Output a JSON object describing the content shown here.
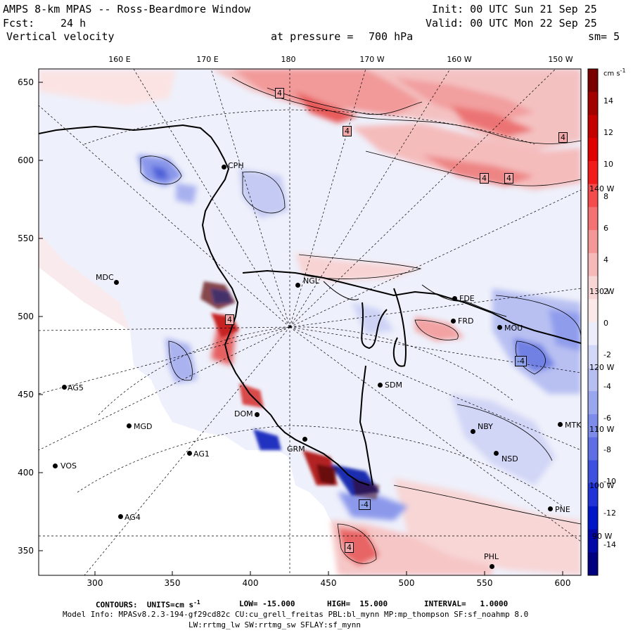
{
  "header": {
    "title": "AMPS 8-km MPAS -- Ross-Beardmore Window",
    "fcst_label": "Fcst:",
    "fcst_value": "24 h",
    "field": "Vertical velocity",
    "init": "Init: 00 UTC Sun 21 Sep 25",
    "valid": "Valid: 00 UTC Mon 22 Sep 25",
    "pressure_label": "at pressure =",
    "pressure_value": "700 hPa",
    "smoothing": "sm= 5"
  },
  "axes": {
    "y_ticks": [
      "650",
      "600",
      "550",
      "500",
      "450",
      "400",
      "350"
    ],
    "x_ticks": [
      "300",
      "350",
      "400",
      "450",
      "500",
      "550",
      "600"
    ],
    "top_longitudes": [
      "160 E",
      "170 E",
      "180",
      "170 W",
      "160 W",
      "150 W"
    ],
    "right_longitudes": [
      "140 W",
      "130 W",
      "120 W",
      "110 W",
      "100 W",
      "90 W"
    ]
  },
  "colorbar": {
    "units": "cm s",
    "units_exp": "-1",
    "ticks": [
      "14",
      "12",
      "10",
      "8",
      "6",
      "4",
      "2",
      "0",
      "-2",
      "-4",
      "-6",
      "-8",
      "-10",
      "-12",
      "-14"
    ],
    "colors": [
      "#7a0000",
      "#a30000",
      "#c40000",
      "#e00000",
      "#f21b1b",
      "#f54d4d",
      "#f57272",
      "#f39797",
      "#f5b9b9",
      "#f9d6d6",
      "#fbe9e9",
      "#ececfb",
      "#d3d7f8",
      "#b7bff2",
      "#9aa6ee",
      "#7d8ceb",
      "#5e6fe6",
      "#3e50e0",
      "#1f33d8",
      "#0017c8",
      "#0008a8",
      "#000080"
    ]
  },
  "stations": [
    {
      "name": "CPH"
    },
    {
      "name": "MDC"
    },
    {
      "name": "NGL"
    },
    {
      "name": "FDE"
    },
    {
      "name": "FRD"
    },
    {
      "name": "MOU"
    },
    {
      "name": "AG5"
    },
    {
      "name": "SDM"
    },
    {
      "name": "MGD"
    },
    {
      "name": "DOM"
    },
    {
      "name": "AG1"
    },
    {
      "name": "GRM"
    },
    {
      "name": "NBY"
    },
    {
      "name": "MTK"
    },
    {
      "name": "NSD"
    },
    {
      "name": "VOS"
    },
    {
      "name": "AG4"
    },
    {
      "name": "PNE"
    },
    {
      "name": "PHL"
    }
  ],
  "contour_labels": [
    "4",
    "4",
    "4",
    "4",
    "4",
    "4",
    "-4",
    "-4",
    "4"
  ],
  "footer": {
    "contours": "CONTOURS:  UNITS=cm s",
    "contours_exp": "-1",
    "low": "LOW= -15.000",
    "high": "HIGH=  15.000",
    "interval": "INTERVAL=   1.0000",
    "model_info": "Model Info: MPASv8.2.3-194-gf29cd82c CU:cu_grell_freitas PBL:bl_mynn MP:mp_thompson SF:sf_noahmp 8.0",
    "model_info2": "LW:rrtmg_lw SW:rrtmg_sw SFLAY:sf_mynn"
  }
}
